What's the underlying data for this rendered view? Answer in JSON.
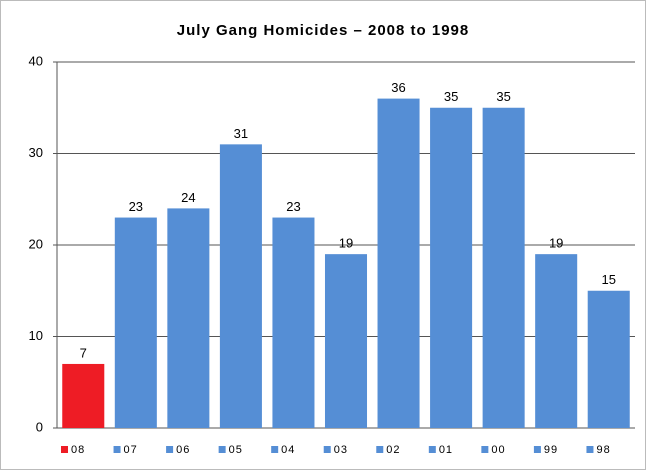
{
  "chart_data": {
    "type": "bar",
    "title": "July Gang Homicides – 2008 to 1998",
    "categories": [
      "08",
      "07",
      "06",
      "05",
      "04",
      "03",
      "02",
      "01",
      "00",
      "99",
      "98"
    ],
    "values": [
      7,
      23,
      24,
      31,
      23,
      19,
      36,
      35,
      35,
      19,
      15
    ],
    "colors": [
      "#ee1c25",
      "#558ed5",
      "#558ed5",
      "#558ed5",
      "#558ed5",
      "#558ed5",
      "#558ed5",
      "#558ed5",
      "#558ed5",
      "#558ed5",
      "#558ed5"
    ],
    "ylim": [
      0,
      40
    ],
    "yticks": [
      0,
      10,
      20,
      30,
      40
    ],
    "grid": true,
    "legend": "bottom"
  }
}
